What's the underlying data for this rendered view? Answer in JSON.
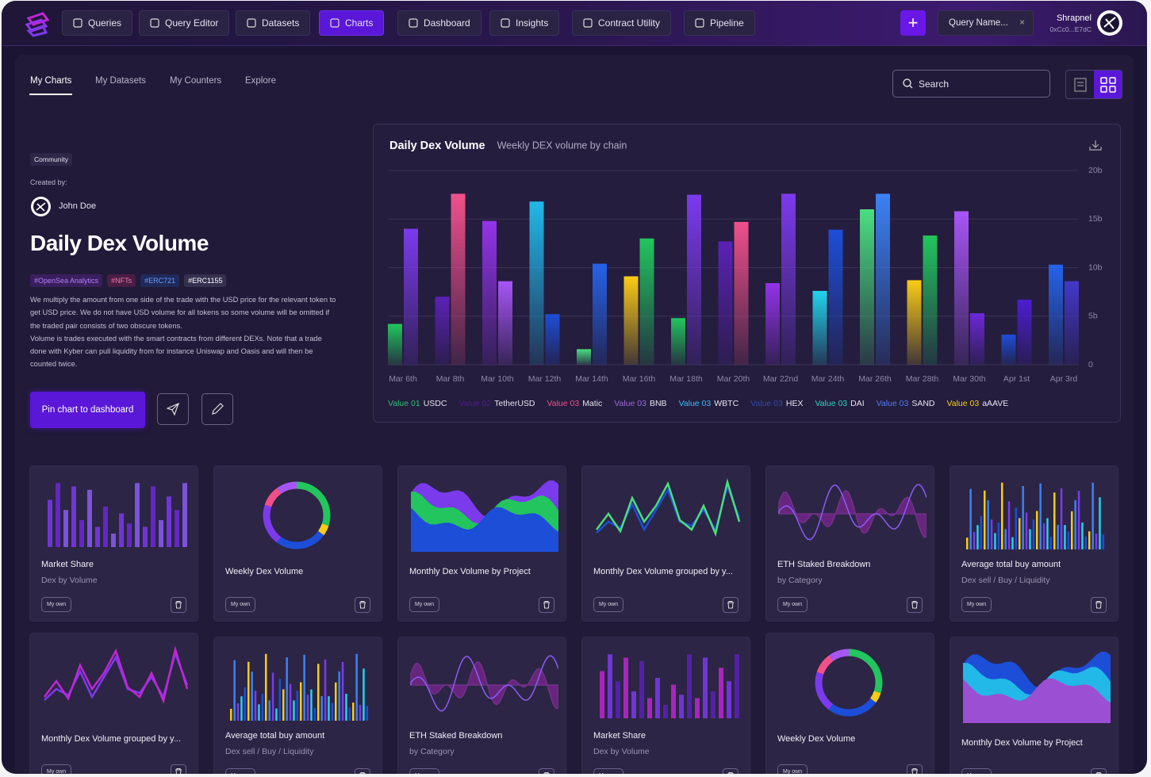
{
  "nav": {
    "items": [
      "Queries",
      "Query Editor",
      "Datasets",
      "Charts",
      "Dashboard",
      "Insights",
      "Contract Utility",
      "Pipeline"
    ],
    "query_name": "Query Name...",
    "user": "Shrapnel",
    "address": "0xCc0...E7dC"
  },
  "tabs": {
    "items": [
      "My Charts",
      "My Datasets",
      "My Counters",
      "Explore"
    ],
    "search": "Search"
  },
  "detail": {
    "badge": "Community",
    "created_by": "Created by:",
    "author": "John Doe",
    "title": "Daily Dex Volume",
    "tags": [
      "#OpenSea Analytics",
      "#NFTs",
      "#ERC721",
      "#ERC1155"
    ],
    "description": [
      "We multiply the amount from one side of the trade with the USD price for the relevant token to get USD price. We do not have USD volume for all tokens so some volume will be omitted if the traded pair consists of two obscure tokens.",
      "Volume is trades executed with the smart contracts from different DEXs. Note that a trade done with Kyber can pull liquidity from for instance Uniswap and Oasis and will then be counted twice."
    ],
    "pin_button": "Pin chart to dashboard"
  },
  "chart_data": {
    "type": "bar",
    "title": "Daily Dex Volume",
    "subtitle": "Weekly DEX volume by chain",
    "categories": [
      "Mar 6th",
      null,
      "Mar 8th",
      null,
      "Mar 10th",
      null,
      "Mar 12th",
      null,
      "Mar 14th",
      null,
      "Mar 16th",
      null,
      "Mar 18th",
      null,
      "Mar 20th",
      null,
      "Mar 22nd",
      null,
      "Mar 24th",
      null,
      "Mar 26th",
      null,
      "Mar 28th",
      null,
      "Mar 30th",
      null,
      "Apr 1st",
      null,
      "Apr 3rd",
      null
    ],
    "values": [
      4.2,
      14.0,
      7.0,
      17.6,
      14.8,
      8.6,
      16.8,
      5.2,
      1.6,
      10.4,
      9.1,
      13.0,
      4.8,
      17.5,
      12.7,
      14.7,
      8.4,
      17.6,
      7.6,
      13.9,
      16.0,
      17.6,
      8.7,
      13.3,
      15.8,
      5.3,
      3.1,
      6.7,
      10.3,
      8.6
    ],
    "colors": [
      "#22c55e",
      "#7c3aed",
      "#5b21b6",
      "#f0508a",
      "#9333ea",
      "#a855f7",
      "#22b8e8",
      "#1d4ed8",
      "#4ade80",
      "#2563eb",
      "#facc15",
      "#22c55e",
      "#22c55e",
      "#7c3aed",
      "#5b21b6",
      "#f0508a",
      "#9333ea",
      "#7c3aed",
      "#22d3ee",
      "#1d4ed8",
      "#4ade80",
      "#3b82f6",
      "#facc15",
      "#22c55e",
      "#a855f7",
      "#6d28d9",
      "#1d4ed8",
      "#4c1dd1",
      "#2563eb",
      "#4338ca"
    ],
    "ylim": [
      0,
      20
    ],
    "yticks": [
      0,
      {
        "value": 5,
        "label": "5b"
      },
      {
        "value": 10,
        "label": "10b"
      },
      {
        "value": 15,
        "label": "15b"
      },
      {
        "value": 20,
        "label": "20b"
      }
    ],
    "grid": true,
    "legend": [
      {
        "label": "Value 01",
        "name": "USDC",
        "color": "#2fbf71"
      },
      {
        "label": "Value 02",
        "name": "TetherUSD",
        "color": "#4c1d95"
      },
      {
        "label": "Value 03",
        "name": "Matic",
        "color": "#f0508a"
      },
      {
        "label": "Value 03",
        "name": "BNB",
        "color": "#9a6ad8"
      },
      {
        "label": "Value 03",
        "name": "WBTC",
        "color": "#38bdf8"
      },
      {
        "label": "Value 03",
        "name": "HEX",
        "color": "#2e4aa8"
      },
      {
        "label": "Value 03",
        "name": "DAI",
        "color": "#2dd4bf"
      },
      {
        "label": "Value 03",
        "name": "SAND",
        "color": "#4f7cf0"
      },
      {
        "label": "Value 03",
        "name": "aAAVE",
        "color": "#facc15"
      }
    ]
  },
  "cards": [
    {
      "title": "Market Share",
      "subtitle": "Dex by Volume",
      "badge": "My own"
    },
    {
      "title": "Weekly Dex Volume",
      "badge": "My own"
    },
    {
      "title": "Monthly Dex Volume by Project",
      "badge": "My own"
    },
    {
      "title": "Monthly Dex Volume grouped by y...",
      "badge": "My own"
    },
    {
      "title": "ETH Staked Breakdown",
      "subtitle": "by Category",
      "badge": "My own"
    },
    {
      "title": "Average total buy amount",
      "subtitle": "Dex sell / Buy / Liquidity",
      "badge": "My own"
    },
    {
      "title": "Monthly Dex Volume grouped by y...",
      "badge": "My own"
    },
    {
      "title": "Average total buy amount",
      "subtitle": "Dex sell / Buy / Liquidity",
      "badge": "My own"
    },
    {
      "title": "ETH Staked Breakdown",
      "subtitle": "by Category",
      "badge": "My own"
    },
    {
      "title": "Market Share",
      "subtitle": "Dex by Volume",
      "badge": "My own"
    },
    {
      "title": "Weekly Dex Volume",
      "badge": "My own"
    },
    {
      "title": "Monthly Dex Volume by Project",
      "badge": "My own"
    }
  ]
}
